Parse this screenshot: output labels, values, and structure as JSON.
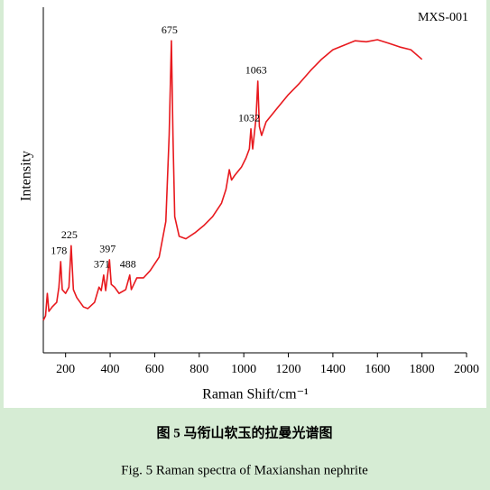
{
  "chart_data": {
    "type": "line",
    "xlabel": "Raman Shift/cm⁻¹",
    "ylabel": "Intensity",
    "captions": [
      "图 5  马衔山软玉的拉曼光谱图",
      "Fig. 5 Raman spectra of Maxianshan nephrite"
    ],
    "xlim": [
      100,
      2000
    ],
    "xticks": [
      200,
      400,
      600,
      800,
      1000,
      1200,
      1400,
      1600,
      1800,
      2000
    ],
    "ylim": [
      0,
      100
    ],
    "x": [
      100,
      110,
      118,
      125,
      140,
      160,
      170,
      178,
      185,
      200,
      215,
      225,
      235,
      250,
      280,
      300,
      330,
      350,
      360,
      371,
      380,
      397,
      405,
      420,
      440,
      470,
      488,
      495,
      520,
      550,
      580,
      620,
      650,
      665,
      675,
      682,
      690,
      710,
      740,
      780,
      820,
      860,
      900,
      920,
      935,
      945,
      960,
      990,
      1010,
      1025,
      1032,
      1040,
      1055,
      1063,
      1070,
      1080,
      1100,
      1150,
      1200,
      1250,
      1300,
      1350,
      1400,
      1450,
      1500,
      1550,
      1600,
      1650,
      1700,
      1750,
      1800
    ],
    "series": [
      {
        "name": "MXS-001",
        "color": "#e8191e",
        "values": [
          9.4,
          10.7,
          17.2,
          12,
          13.3,
          14.6,
          19,
          26.4,
          18.3,
          17.2,
          19,
          31,
          18.3,
          16,
          13.3,
          12.8,
          14.6,
          19,
          18,
          22.5,
          18,
          26.9,
          19.8,
          19,
          17.2,
          18.3,
          22.5,
          18.3,
          21.7,
          21.7,
          23.8,
          27.7,
          38,
          63,
          90.3,
          63,
          39.4,
          33.7,
          33,
          34.7,
          36.8,
          39.4,
          43.3,
          47.3,
          53,
          50,
          51.4,
          53.8,
          56.4,
          59,
          64.8,
          59,
          68,
          78.6,
          65.5,
          62.9,
          66.8,
          70.8,
          74.7,
          78,
          81.7,
          85,
          87.7,
          89,
          90.3,
          90,
          90.6,
          89.6,
          88.5,
          87.7,
          84.9
        ]
      }
    ],
    "annotations": [
      {
        "x": 178,
        "label": "178"
      },
      {
        "x": 225,
        "label": "225"
      },
      {
        "x": 371,
        "label": "371"
      },
      {
        "x": 397,
        "label": "397"
      },
      {
        "x": 488,
        "label": "488"
      },
      {
        "x": 675,
        "label": "675"
      },
      {
        "x": 1032,
        "label": "1032"
      },
      {
        "x": 1063,
        "label": "1063"
      }
    ],
    "legend": "upper right"
  }
}
